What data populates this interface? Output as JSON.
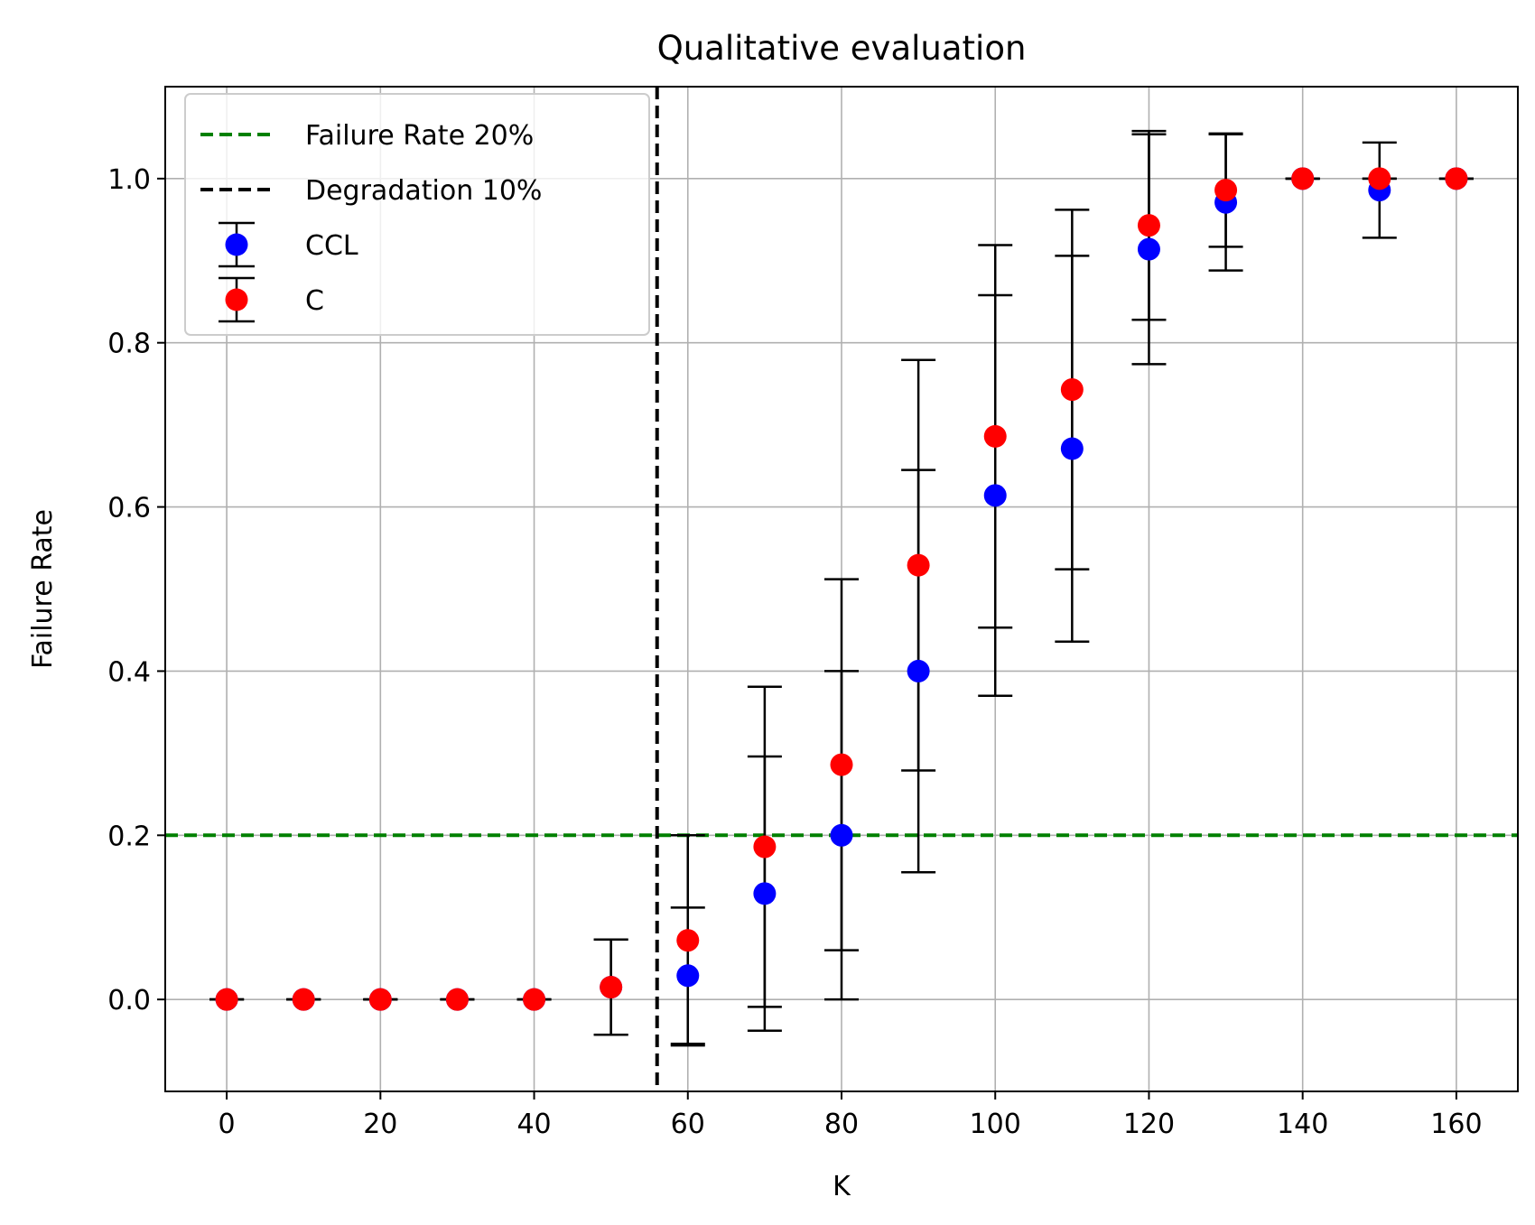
{
  "chart_data": {
    "type": "scatter",
    "title": "Qualitative evaluation",
    "xlabel": "K",
    "ylabel": "Failure Rate",
    "xlim": [
      -8,
      168
    ],
    "ylim": [
      -0.112,
      1.112
    ],
    "xticks": [
      0,
      20,
      40,
      60,
      80,
      100,
      120,
      140,
      160
    ],
    "xtick_labels": [
      "0",
      "20",
      "40",
      "60",
      "80",
      "100",
      "120",
      "140",
      "160"
    ],
    "yticks": [
      0.0,
      0.2,
      0.4,
      0.6,
      0.8,
      1.0
    ],
    "ytick_labels": [
      "0.0",
      "0.2",
      "0.4",
      "0.6",
      "0.8",
      "1.0"
    ],
    "grid": true,
    "legend_position": "top-left",
    "hlines": [
      {
        "name": "Failure Rate 20%",
        "y": 0.2,
        "color": "#008000",
        "style": "dashed"
      }
    ],
    "vlines": [
      {
        "name": "Degradation 10%",
        "x": 56,
        "color": "#000000",
        "style": "dashed"
      }
    ],
    "series": [
      {
        "name": "CCL",
        "color": "#0000ff",
        "x": [
          0,
          10,
          20,
          30,
          40,
          50,
          60,
          70,
          80,
          90,
          100,
          110,
          120,
          130,
          140,
          150,
          160
        ],
        "y": [
          0,
          0,
          0,
          0,
          0,
          0.015,
          0.029,
          0.129,
          0.2,
          0.4,
          0.614,
          0.671,
          0.914,
          0.971,
          1.0,
          0.986,
          1.0
        ],
        "yerr": [
          0,
          0,
          0,
          0,
          0,
          0.058,
          0.083,
          0.167,
          0.2,
          0.245,
          0.244,
          0.235,
          0.14,
          0.083,
          0,
          0.058,
          0
        ]
      },
      {
        "name": "C",
        "color": "#ff0000",
        "x": [
          0,
          10,
          20,
          30,
          40,
          50,
          60,
          70,
          80,
          90,
          100,
          110,
          120,
          130,
          140,
          150,
          160
        ],
        "y": [
          0,
          0,
          0,
          0,
          0,
          0.015,
          0.072,
          0.186,
          0.286,
          0.529,
          0.686,
          0.743,
          0.943,
          0.986,
          1.0,
          1.0,
          1.0
        ],
        "yerr": [
          0,
          0,
          0,
          0,
          0,
          0.058,
          0.128,
          0.195,
          0.226,
          0.25,
          0.233,
          0.219,
          0.115,
          0.069,
          0,
          0,
          0
        ]
      }
    ]
  }
}
